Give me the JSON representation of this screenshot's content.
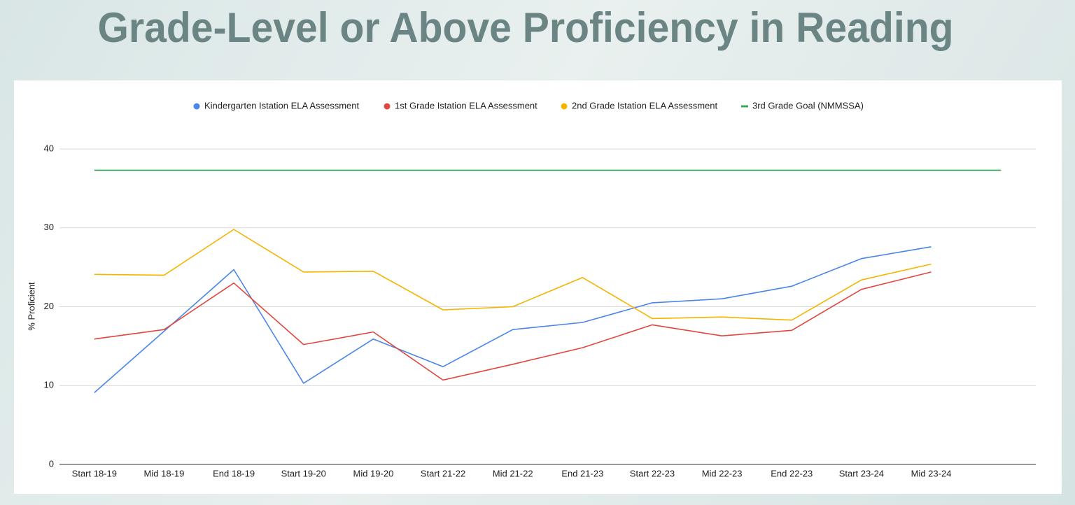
{
  "chart_data": {
    "type": "line",
    "title": "Grade-Level or Above Proficiency in Reading",
    "ylabel": "% Proficient",
    "categories": [
      "Start 18-19",
      "Mid 18-19",
      "End 18-19",
      "Start 19-20",
      "Mid 19-20",
      "Start 21-22",
      "Mid 21-22",
      "End 21-23",
      "Start 22-23",
      "Mid 22-23",
      "End 22-23",
      "Start 23-24",
      "Mid 23-24",
      null
    ],
    "series": [
      {
        "name": "Kindergarten Istation ELA Assessment",
        "color": "#4a86e8",
        "values": [
          9.1,
          16.9,
          24.7,
          10.3,
          15.9,
          12.4,
          17.1,
          18.0,
          20.5,
          21.0,
          22.6,
          26.1,
          27.6,
          null
        ]
      },
      {
        "name": "1st Grade Istation ELA Assessment",
        "color": "#e0473f",
        "values": [
          15.9,
          17.1,
          23.0,
          15.2,
          16.8,
          10.7,
          12.7,
          14.8,
          17.7,
          16.3,
          17.0,
          22.2,
          24.4,
          null
        ]
      },
      {
        "name": "2nd Grade Istation ELA Assessment",
        "color": "#f4b400",
        "values": [
          24.1,
          24.0,
          29.8,
          24.4,
          24.5,
          19.6,
          20.0,
          23.7,
          18.5,
          18.7,
          18.3,
          23.4,
          25.4,
          null
        ]
      },
      {
        "name": "3rd Grade Goal (NMMSSA)",
        "color": "#34a853",
        "values": [
          37.3,
          37.3,
          37.3,
          37.3,
          37.3,
          37.3,
          37.3,
          37.3,
          37.3,
          37.3,
          37.3,
          37.3,
          37.3,
          37.3
        ]
      }
    ],
    "ylim": [
      0,
      40
    ],
    "yticks": [
      0,
      10,
      20,
      30,
      40
    ],
    "grid": true,
    "legend": "top"
  }
}
